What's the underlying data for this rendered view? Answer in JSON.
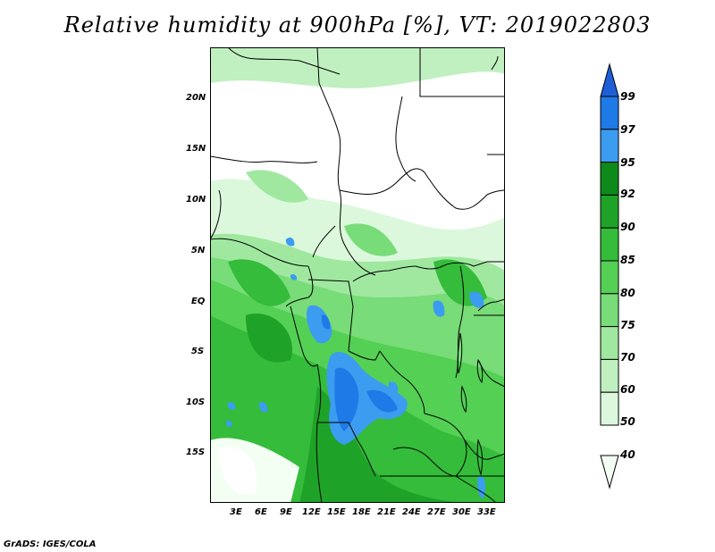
{
  "title": "Relative humidity at 900hPa [%], VT: 2019022803",
  "credit": "GrADS: IGES/COLA",
  "map": {
    "lat_labels": [
      "20N",
      "15N",
      "10N",
      "5N",
      "EQ",
      "5S",
      "10S",
      "15S"
    ],
    "lon_labels": [
      "3E",
      "6E",
      "9E",
      "12E",
      "15E",
      "18E",
      "21E",
      "24E",
      "27E",
      "30E",
      "33E"
    ]
  },
  "colorbar": {
    "levels": [
      "99",
      "97",
      "95",
      "92",
      "90",
      "85",
      "80",
      "75",
      "70",
      "60",
      "50",
      "40"
    ],
    "colors": [
      "#1e5fd6",
      "#1e7ae6",
      "#3c9cf0",
      "#0e8a1a",
      "#1ea328",
      "#34bc3a",
      "#54d054",
      "#78dc78",
      "#a0e8a0",
      "#c0f0c0",
      "#dcf8dc",
      "#f4fff4"
    ]
  }
}
